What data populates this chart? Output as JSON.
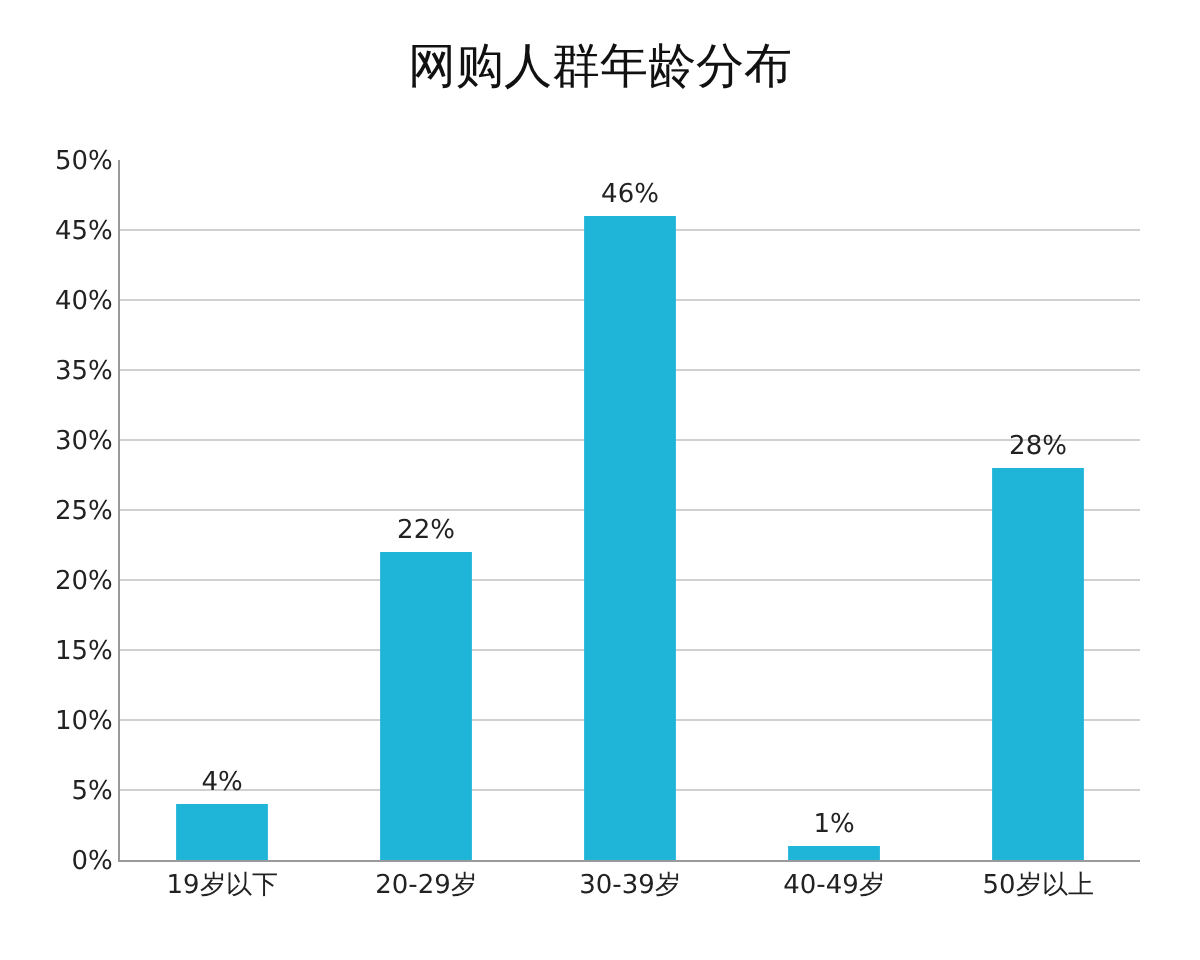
{
  "chart_data": {
    "type": "bar",
    "title": "网购人群年龄分布",
    "categories": [
      "19岁以下",
      "20-29岁",
      "30-39岁",
      "40-49岁",
      "50岁以上"
    ],
    "values": [
      4,
      22,
      46,
      1,
      28
    ],
    "value_labels": [
      "4%",
      "22%",
      "46%",
      "1%",
      "28%"
    ],
    "color": "#1fb5d9",
    "ylim": [
      0,
      50
    ],
    "yticks": [
      {
        "value": 0,
        "label": "0%"
      },
      {
        "value": 5,
        "label": "5%"
      },
      {
        "value": 10,
        "label": "10%"
      },
      {
        "value": 15,
        "label": "15%"
      },
      {
        "value": 20,
        "label": "20%"
      },
      {
        "value": 25,
        "label": "25%"
      },
      {
        "value": 30,
        "label": "30%"
      },
      {
        "value": 35,
        "label": "35%"
      },
      {
        "value": 40,
        "label": "40%"
      },
      {
        "value": 45,
        "label": "45%"
      },
      {
        "value": 50,
        "label": "50%"
      }
    ],
    "grid": "y"
  }
}
